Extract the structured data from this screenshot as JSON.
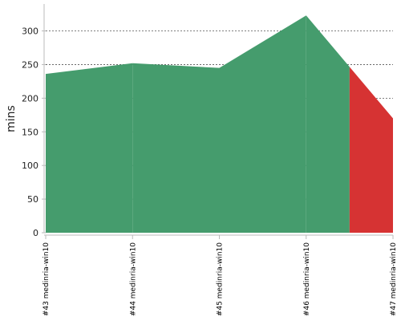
{
  "chart_data": {
    "type": "area",
    "ylabel": "mins",
    "ylim": [
      0,
      340
    ],
    "yticks": [
      0,
      50,
      100,
      150,
      200,
      250,
      300
    ],
    "grid": true,
    "categories": [
      "#43 medinria-win10",
      "#44 medinria-win10",
      "#45 medinria-win10",
      "#46 medinria-win10",
      "#47 medinria-win10"
    ],
    "values": [
      236,
      252,
      245,
      323,
      170
    ],
    "status": [
      "success",
      "success",
      "success",
      "success",
      "failure"
    ],
    "colors": {
      "success": "#459c6d",
      "failure": "#d63333",
      "grid": "#555555",
      "axis": "#bbbbbb"
    }
  }
}
